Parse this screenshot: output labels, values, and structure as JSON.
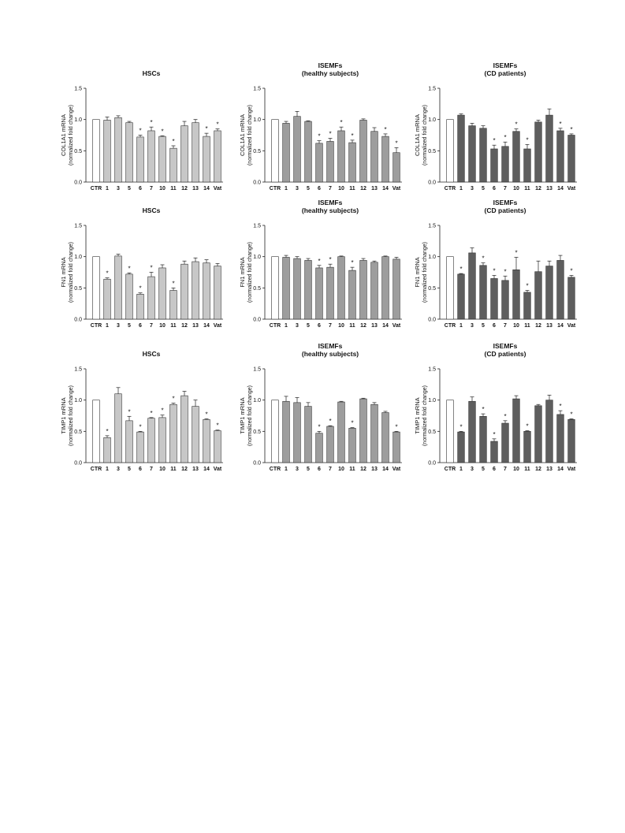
{
  "chart_data": [
    {
      "type": "bar",
      "title": [
        "HSCs"
      ],
      "ylabel": [
        "COL1A1 mRNA",
        "(normalized fold change)"
      ],
      "ylim": [
        0,
        1.5
      ],
      "yticks": [
        "0.0",
        "0.5",
        "1.0",
        "1.5"
      ],
      "categories": [
        "CTR",
        "1",
        "3",
        "5",
        "6",
        "7",
        "10",
        "11",
        "12",
        "13",
        "14",
        "Vat"
      ],
      "values": [
        1.0,
        0.99,
        1.03,
        0.95,
        0.72,
        0.82,
        0.73,
        0.54,
        0.9,
        0.95,
        0.73,
        0.82
      ],
      "errors": [
        0,
        0.05,
        0.03,
        0.02,
        0.03,
        0.06,
        0.01,
        0.04,
        0.07,
        0.05,
        0.05,
        0.03
      ],
      "significant": [
        false,
        false,
        false,
        false,
        true,
        true,
        true,
        true,
        false,
        false,
        true,
        true
      ],
      "star_label": "*",
      "bar_color": "#c7c7c7",
      "ctr_color": "#ffffff"
    },
    {
      "type": "bar",
      "title": [
        "ISEMFs",
        "(healthy subjects)"
      ],
      "ylabel": [
        "COL1A1 mRNA",
        "(normalized fold change)"
      ],
      "ylim": [
        0,
        1.5
      ],
      "yticks": [
        "0.0",
        "0.5",
        "1.0",
        "1.5"
      ],
      "categories": [
        "CTR",
        "1",
        "3",
        "5",
        "6",
        "7",
        "10",
        "11",
        "12",
        "13",
        "14",
        "Vat"
      ],
      "values": [
        1.0,
        0.94,
        1.05,
        0.97,
        0.62,
        0.65,
        0.82,
        0.63,
        0.99,
        0.81,
        0.73,
        0.47
      ],
      "errors": [
        0,
        0.03,
        0.08,
        0.01,
        0.04,
        0.05,
        0.06,
        0.04,
        0.02,
        0.06,
        0.04,
        0.08
      ],
      "significant": [
        false,
        false,
        false,
        false,
        true,
        true,
        true,
        true,
        false,
        false,
        true,
        true
      ],
      "star_label": "*",
      "bar_color": "#9d9d9d",
      "ctr_color": "#ffffff"
    },
    {
      "type": "bar",
      "title": [
        "ISEMFs",
        "(CD patients)"
      ],
      "ylabel": [
        "COL1A1 mRNA",
        "(normalized fold change)"
      ],
      "ylim": [
        0,
        1.5
      ],
      "yticks": [
        "0.0",
        "0.5",
        "1.0",
        "1.5"
      ],
      "categories": [
        "CTR",
        "1",
        "3",
        "5",
        "6",
        "7",
        "10",
        "11",
        "12",
        "13",
        "14",
        "Vat"
      ],
      "values": [
        1.0,
        1.07,
        0.9,
        0.86,
        0.53,
        0.57,
        0.81,
        0.53,
        0.96,
        1.07,
        0.82,
        0.75
      ],
      "errors": [
        0,
        0.02,
        0.04,
        0.04,
        0.06,
        0.07,
        0.04,
        0.07,
        0.03,
        0.1,
        0.04,
        0.02
      ],
      "significant": [
        false,
        false,
        false,
        false,
        true,
        true,
        true,
        true,
        false,
        false,
        true,
        true
      ],
      "star_label": "*",
      "bar_color": "#5e5e5e",
      "ctr_color": "#ffffff"
    },
    {
      "type": "bar",
      "title": [
        "HSCs"
      ],
      "ylabel": [
        "FN1 mRNA",
        "(normalized fold change)"
      ],
      "ylim": [
        0,
        1.5
      ],
      "yticks": [
        "0.0",
        "0.5",
        "1.0",
        "1.5"
      ],
      "categories": [
        "CTR",
        "1",
        "3",
        "5",
        "6",
        "7",
        "10",
        "11",
        "12",
        "13",
        "14",
        "Vat"
      ],
      "values": [
        1.0,
        0.64,
        1.01,
        0.72,
        0.4,
        0.68,
        0.82,
        0.46,
        0.88,
        0.92,
        0.9,
        0.85
      ],
      "errors": [
        0,
        0.02,
        0.03,
        0.02,
        0.02,
        0.07,
        0.05,
        0.04,
        0.05,
        0.06,
        0.05,
        0.04
      ],
      "significant": [
        false,
        true,
        false,
        true,
        true,
        true,
        false,
        true,
        false,
        false,
        false,
        false
      ],
      "star_label": "*",
      "bar_color": "#c7c7c7",
      "ctr_color": "#ffffff"
    },
    {
      "type": "bar",
      "title": [
        "ISEMFs",
        "(healthy subjects)"
      ],
      "ylabel": [
        "FN1 mRNA",
        "(normalized fold change)"
      ],
      "ylim": [
        0,
        1.5
      ],
      "yticks": [
        "0.0",
        "0.5",
        "1.0",
        "1.5"
      ],
      "categories": [
        "CTR",
        "1",
        "3",
        "5",
        "6",
        "7",
        "10",
        "11",
        "12",
        "13",
        "14",
        "Vat"
      ],
      "values": [
        1.0,
        0.99,
        0.97,
        0.94,
        0.82,
        0.83,
        1.0,
        0.78,
        0.94,
        0.91,
        1.0,
        0.96
      ],
      "errors": [
        0,
        0.03,
        0.03,
        0.03,
        0.04,
        0.05,
        0.01,
        0.05,
        0.03,
        0.02,
        0.01,
        0.03
      ],
      "significant": [
        false,
        false,
        false,
        false,
        true,
        true,
        false,
        true,
        false,
        false,
        false,
        false
      ],
      "star_label": "*",
      "bar_color": "#9d9d9d",
      "ctr_color": "#ffffff"
    },
    {
      "type": "bar",
      "title": [
        "ISEMFs",
        "(CD patients)"
      ],
      "ylabel": [
        "FN1 mRNA",
        "(normalized fold change)"
      ],
      "ylim": [
        0,
        1.5
      ],
      "yticks": [
        "0.0",
        "0.5",
        "1.0",
        "1.5"
      ],
      "categories": [
        "CTR",
        "1",
        "3",
        "5",
        "6",
        "7",
        "10",
        "11",
        "12",
        "13",
        "14",
        "Vat"
      ],
      "values": [
        1.0,
        0.72,
        1.06,
        0.86,
        0.65,
        0.62,
        0.79,
        0.43,
        0.76,
        0.85,
        0.94,
        0.67
      ],
      "errors": [
        0,
        0.01,
        0.08,
        0.04,
        0.05,
        0.07,
        0.2,
        0.03,
        0.17,
        0.08,
        0.08,
        0.03
      ],
      "significant": [
        false,
        true,
        false,
        true,
        true,
        true,
        true,
        true,
        false,
        false,
        false,
        true
      ],
      "star_label": "*",
      "bar_color": "#5e5e5e",
      "ctr_color": "#ffffff"
    },
    {
      "type": "bar",
      "title": [
        "HSCs"
      ],
      "ylabel": [
        "TIMP1 mRNA",
        "(normalized fold change)"
      ],
      "ylim": [
        0,
        1.5
      ],
      "yticks": [
        "0.0",
        "0.5",
        "1.0",
        "1.5"
      ],
      "categories": [
        "CTR",
        "1",
        "3",
        "5",
        "6",
        "7",
        "10",
        "11",
        "12",
        "13",
        "14",
        "Vat"
      ],
      "values": [
        1.0,
        0.4,
        1.1,
        0.67,
        0.49,
        0.71,
        0.72,
        0.93,
        1.07,
        0.9,
        0.69,
        0.51
      ],
      "errors": [
        0,
        0.03,
        0.1,
        0.07,
        0.01,
        0.01,
        0.04,
        0.02,
        0.07,
        0.1,
        0.01,
        0.01
      ],
      "significant": [
        false,
        true,
        false,
        true,
        true,
        true,
        true,
        true,
        false,
        false,
        true,
        true
      ],
      "star_label": "*",
      "bar_color": "#c7c7c7",
      "ctr_color": "#ffffff"
    },
    {
      "type": "bar",
      "title": [
        "ISEMFs",
        "(healthy subjects)"
      ],
      "ylabel": [
        "TIMP1 mRNA",
        "(normalized fold change)"
      ],
      "ylim": [
        0,
        1.5
      ],
      "yticks": [
        "0.0",
        "0.5",
        "1.0",
        "1.5"
      ],
      "categories": [
        "CTR",
        "1",
        "3",
        "5",
        "6",
        "7",
        "10",
        "11",
        "12",
        "13",
        "14",
        "Vat"
      ],
      "values": [
        1.0,
        0.98,
        0.96,
        0.9,
        0.47,
        0.58,
        0.97,
        0.55,
        1.02,
        0.93,
        0.8,
        0.49
      ],
      "errors": [
        0,
        0.08,
        0.08,
        0.06,
        0.03,
        0.01,
        0.01,
        0.01,
        0.01,
        0.03,
        0.02,
        0.01
      ],
      "significant": [
        false,
        false,
        false,
        false,
        true,
        true,
        false,
        true,
        false,
        false,
        false,
        true
      ],
      "star_label": "*",
      "bar_color": "#9d9d9d",
      "ctr_color": "#ffffff"
    },
    {
      "type": "bar",
      "title": [
        "ISEMFs",
        "(CD patients)"
      ],
      "ylabel": [
        "TIMP1 mRNA",
        "(normalized fold change)"
      ],
      "ylim": [
        0,
        1.5
      ],
      "yticks": [
        "0.0",
        "0.5",
        "1.0",
        "1.5"
      ],
      "categories": [
        "CTR",
        "1",
        "3",
        "5",
        "6",
        "7",
        "10",
        "11",
        "12",
        "13",
        "14",
        "Vat"
      ],
      "values": [
        1.0,
        0.49,
        0.98,
        0.74,
        0.34,
        0.63,
        1.02,
        0.5,
        0.91,
        1.0,
        0.77,
        0.69
      ],
      "errors": [
        0,
        0.01,
        0.07,
        0.04,
        0.04,
        0.04,
        0.05,
        0.01,
        0.02,
        0.08,
        0.06,
        0.01
      ],
      "significant": [
        false,
        true,
        false,
        true,
        true,
        true,
        false,
        true,
        false,
        false,
        true,
        true
      ],
      "star_label": "*",
      "bar_color": "#5e5e5e",
      "ctr_color": "#ffffff"
    }
  ]
}
